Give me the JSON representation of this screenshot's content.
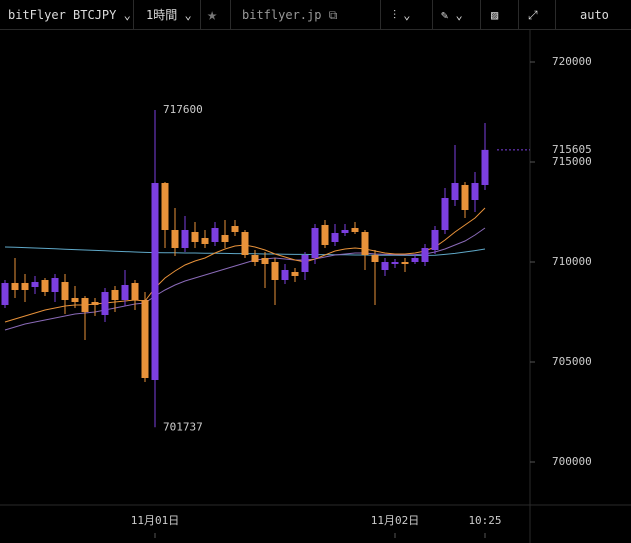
{
  "toolbar": {
    "symbol": "bitFlyer BTCJPY",
    "interval": "1時間",
    "site": "bitflyer.jp",
    "scale": "auto"
  },
  "chart_data": {
    "type": "candlestick",
    "categories": [
      null,
      null,
      null,
      null,
      null,
      null,
      null,
      null,
      null,
      null,
      null,
      null,
      null,
      null,
      null,
      "11月01日",
      null,
      null,
      null,
      null,
      null,
      null,
      null,
      null,
      null,
      null,
      null,
      null,
      null,
      null,
      null,
      null,
      null,
      null,
      null,
      null,
      null,
      null,
      null,
      "11月02日",
      null,
      null,
      null,
      null,
      null,
      null,
      null,
      null,
      "10:25"
    ],
    "open": [
      707850,
      708950,
      708950,
      708750,
      709100,
      708500,
      709000,
      708200,
      708200,
      708000,
      707350,
      708600,
      708100,
      708950,
      708100,
      704100,
      713950,
      711600,
      710700,
      711500,
      711200,
      711000,
      711350,
      711800,
      711500,
      710350,
      710200,
      710000,
      709100,
      709500,
      709500,
      710200,
      711850,
      711000,
      711450,
      711700,
      711500,
      710350,
      709600,
      709900,
      710000,
      710000,
      710000,
      710600,
      711600,
      713100,
      713850,
      713100,
      713850
    ],
    "high": [
      709100,
      710200,
      709400,
      709300,
      709200,
      709400,
      709400,
      708800,
      708300,
      708200,
      708700,
      708800,
      709600,
      709100,
      708500,
      717600,
      714000,
      712700,
      712300,
      712000,
      711600,
      712000,
      712100,
      712100,
      711600,
      710600,
      710500,
      710200,
      709900,
      709700,
      710500,
      711900,
      712100,
      711900,
      711900,
      712000,
      711600,
      710600,
      710200,
      710150,
      710200,
      710400,
      710900,
      711800,
      713700,
      715850,
      714000,
      714500,
      716950
    ],
    "low": [
      707700,
      708200,
      708000,
      708400,
      708300,
      708000,
      707400,
      707700,
      706100,
      707300,
      707000,
      707500,
      707800,
      707600,
      704000,
      701737,
      710700,
      710300,
      710500,
      710700,
      710700,
      710800,
      710700,
      711300,
      710200,
      709800,
      708700,
      707850,
      708900,
      709000,
      709100,
      709900,
      710700,
      710800,
      711300,
      711400,
      709600,
      707850,
      709300,
      709700,
      709500,
      709900,
      709800,
      710400,
      711400,
      712800,
      712200,
      712500,
      713600
    ],
    "close": [
      708950,
      708600,
      708600,
      709000,
      708500,
      709200,
      708100,
      708000,
      707500,
      707850,
      708500,
      708100,
      708850,
      708100,
      704200,
      713950,
      711600,
      710700,
      711600,
      711000,
      710900,
      711700,
      711000,
      711500,
      710350,
      710000,
      709900,
      709100,
      709600,
      709300,
      710350,
      711700,
      710850,
      711450,
      711600,
      711500,
      710350,
      710000,
      710000,
      710000,
      709900,
      710200,
      710700,
      711600,
      713200,
      713950,
      712600,
      713950,
      715605
    ],
    "up_color": "#7c3fe0",
    "down_color": "#e8923a",
    "lines": [
      {
        "color": "#5fa8c8",
        "values": [
          710750,
          710740,
          710720,
          710700,
          710680,
          710660,
          710640,
          710620,
          710600,
          710580,
          710560,
          710540,
          710520,
          710500,
          710480,
          710470,
          710460,
          710460,
          710450,
          710450,
          710440,
          710440,
          710430,
          710420,
          710420,
          710410,
          710400,
          710400,
          710390,
          710380,
          710380,
          710370,
          710370,
          710360,
          710360,
          710350,
          710350,
          710340,
          710340,
          710340,
          710330,
          710330,
          710330,
          710340,
          710380,
          710430,
          710500,
          710570,
          710650
        ]
      },
      {
        "color": "#8a6ab8",
        "values": [
          706600,
          706750,
          706900,
          707000,
          707100,
          707200,
          707300,
          707400,
          707450,
          707500,
          707600,
          707700,
          707800,
          707900,
          707950,
          708300,
          708600,
          708850,
          709050,
          709200,
          709350,
          709500,
          709650,
          709800,
          709950,
          710100,
          710150,
          710200,
          710150,
          710100,
          710100,
          710150,
          710250,
          710350,
          710400,
          710450,
          710450,
          710400,
          710380,
          710370,
          710360,
          710370,
          710400,
          710500,
          710650,
          710850,
          711050,
          711350,
          711700
        ]
      },
      {
        "color": "#e8923a",
        "values": [
          707000,
          707150,
          707300,
          707450,
          707600,
          707700,
          707800,
          707850,
          707850,
          707900,
          707950,
          708000,
          708050,
          708100,
          708050,
          708700,
          709200,
          709550,
          709850,
          710050,
          710200,
          710450,
          710650,
          710800,
          710850,
          710750,
          710600,
          710400,
          710250,
          710100,
          710000,
          710150,
          710350,
          710550,
          710650,
          710700,
          710650,
          710550,
          710450,
          710400,
          710400,
          710450,
          710550,
          710750,
          711100,
          711500,
          711850,
          712200,
          712700
        ]
      }
    ],
    "ylim": [
      697850,
      721600
    ],
    "yticks": [
      700000,
      705000,
      710000,
      715000,
      720000
    ]
  }
}
